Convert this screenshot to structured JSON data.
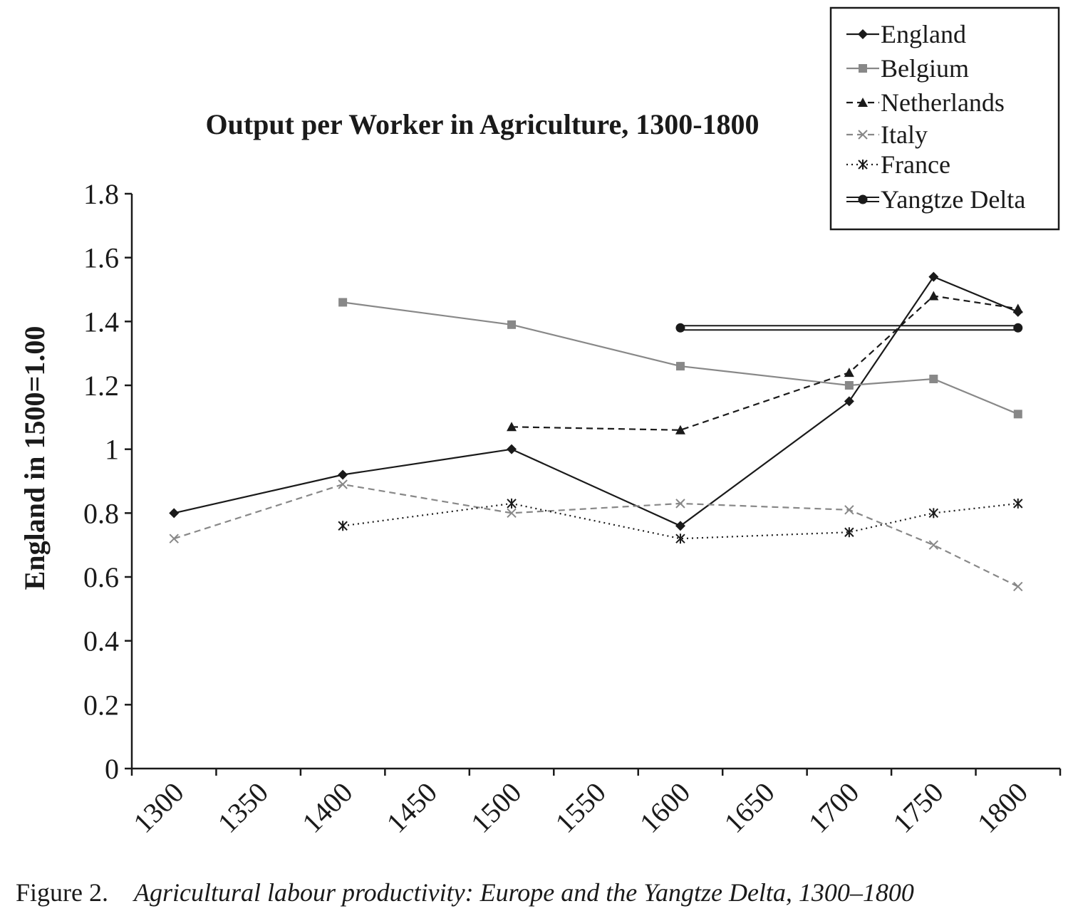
{
  "chart_data": {
    "type": "line",
    "title": "Output per Worker in Agriculture, 1300-1800",
    "ylabel": "England in 1500=1.00",
    "xlabel": "",
    "ylim": [
      0,
      1.8
    ],
    "yticks": [
      "0",
      "0.2",
      "0.4",
      "0.6",
      "0.8",
      "1",
      "1.2",
      "1.4",
      "1.6",
      "1.8"
    ],
    "categories": [
      "1300",
      "1350",
      "1400",
      "1450",
      "1500",
      "1550",
      "1600",
      "1650",
      "1700",
      "1750",
      "1800"
    ],
    "legend_position": "top-right",
    "grid": false,
    "series": [
      {
        "name": "England",
        "color": "#1a1a1a",
        "marker": "diamond",
        "dash": "solid",
        "points": [
          [
            1300,
            0.8
          ],
          [
            1400,
            0.92
          ],
          [
            1500,
            1.0
          ],
          [
            1600,
            0.76
          ],
          [
            1700,
            1.15
          ],
          [
            1750,
            1.54
          ],
          [
            1800,
            1.43
          ]
        ]
      },
      {
        "name": "Belgium",
        "color": "#888888",
        "marker": "square",
        "dash": "solid",
        "points": [
          [
            1400,
            1.46
          ],
          [
            1500,
            1.39
          ],
          [
            1600,
            1.26
          ],
          [
            1700,
            1.2
          ],
          [
            1750,
            1.22
          ],
          [
            1800,
            1.11
          ]
        ]
      },
      {
        "name": "Netherlands",
        "color": "#1a1a1a",
        "marker": "triangle",
        "dash": "dashed",
        "points": [
          [
            1500,
            1.07
          ],
          [
            1600,
            1.06
          ],
          [
            1700,
            1.24
          ],
          [
            1750,
            1.48
          ],
          [
            1800,
            1.44
          ]
        ]
      },
      {
        "name": "Italy",
        "color": "#888888",
        "marker": "x",
        "dash": "dashed",
        "points": [
          [
            1300,
            0.72
          ],
          [
            1400,
            0.89
          ],
          [
            1500,
            0.8
          ],
          [
            1600,
            0.83
          ],
          [
            1700,
            0.81
          ],
          [
            1750,
            0.7
          ],
          [
            1800,
            0.57
          ]
        ]
      },
      {
        "name": "France",
        "color": "#1a1a1a",
        "marker": "star",
        "dash": "dotted",
        "points": [
          [
            1400,
            0.76
          ],
          [
            1500,
            0.83
          ],
          [
            1600,
            0.72
          ],
          [
            1700,
            0.74
          ],
          [
            1750,
            0.8
          ],
          [
            1800,
            0.83
          ]
        ]
      },
      {
        "name": "Yangtze Delta",
        "color": "#1a1a1a",
        "marker": "circle",
        "dash": "double",
        "points": [
          [
            1600,
            1.38
          ],
          [
            1800,
            1.38
          ]
        ]
      }
    ]
  },
  "caption": {
    "label": "Figure 2.",
    "text": "Agricultural labour productivity: Europe and the Yangtze Delta, 1300–1800"
  }
}
